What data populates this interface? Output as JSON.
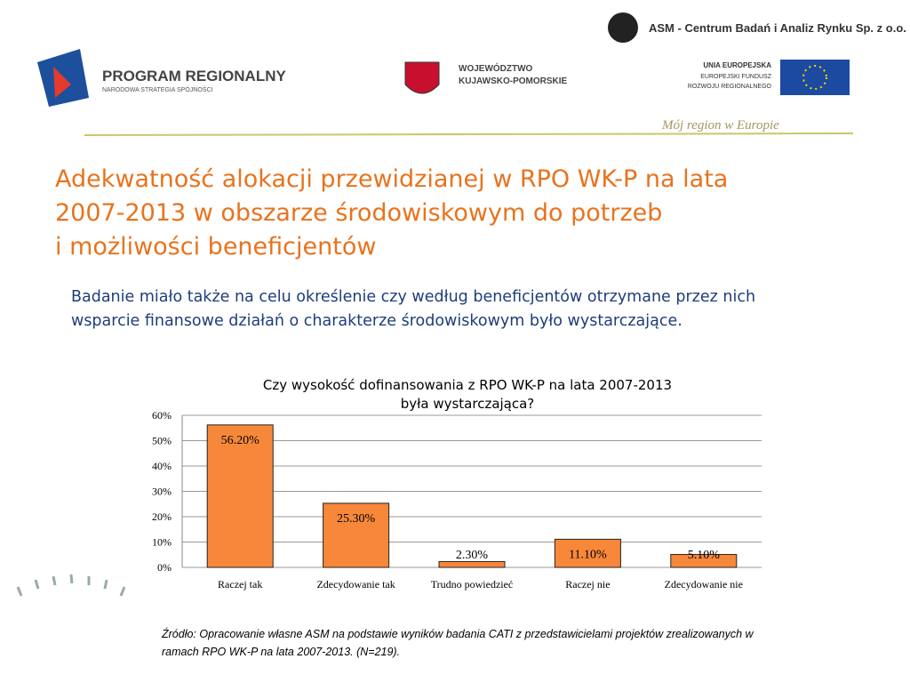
{
  "header": {
    "company": "ASM - Centrum Badań i Analiz Rynku Sp. z o.o.",
    "program": "PROGRAM REGIONALNY",
    "program_sub": "NARODOWA STRATEGIA SPÓJNOŚCI",
    "region": [
      "WOJEWÓDZTWO",
      "KUJAWSKO-POMORSKIE"
    ],
    "eu": [
      "UNIA EUROPEJSKA",
      "EUROPEJSKI FUNDUSZ",
      "ROZWOJU REGIONALNEGO"
    ],
    "motto": "Mój region w Europie"
  },
  "title": [
    "Adekwatność alokacji przewidzianej w RPO WK-P na lata",
    "2007-2013 w obszarze środowiskowym do potrzeb",
    "i możliwości beneficjentów"
  ],
  "body": [
    "Badanie miało także na celu określenie czy według beneficjentów otrzymane przez nich",
    "wsparcie finansowe działań o charakterze środowiskowym było wystarczające."
  ],
  "chart_data": {
    "type": "bar",
    "title": [
      "Czy wysokość dofinansowania z RPO WK-P na lata 2007-2013",
      "była wystarczająca?"
    ],
    "categories": [
      "Raczej tak",
      "Zdecydowanie tak",
      "Trudno powiedzieć",
      "Raczej nie",
      "Zdecydowanie nie"
    ],
    "values": [
      56.2,
      25.3,
      2.3,
      11.1,
      5.1
    ],
    "value_labels": [
      "56.20%",
      "25.30%",
      "2.30%",
      "11.10%",
      "5.10%"
    ],
    "color": "#f7883a",
    "ylim": [
      0,
      60
    ],
    "yticks": [
      {
        "value": 0,
        "label": "0%"
      },
      {
        "value": 10,
        "label": "10%"
      },
      {
        "value": 20,
        "label": "20%"
      },
      {
        "value": 30,
        "label": "30%"
      },
      {
        "value": 40,
        "label": "40%"
      },
      {
        "value": 50,
        "label": "50%"
      },
      {
        "value": 60,
        "label": "60%"
      }
    ],
    "grid": true
  },
  "source": [
    "Źródło: Opracowanie własne ASM na podstawie wyników badania CATI z przedstawicielami projektów zrealizowanych w",
    "ramach RPO WK-P  na lata 2007-2013. (N=219)."
  ]
}
